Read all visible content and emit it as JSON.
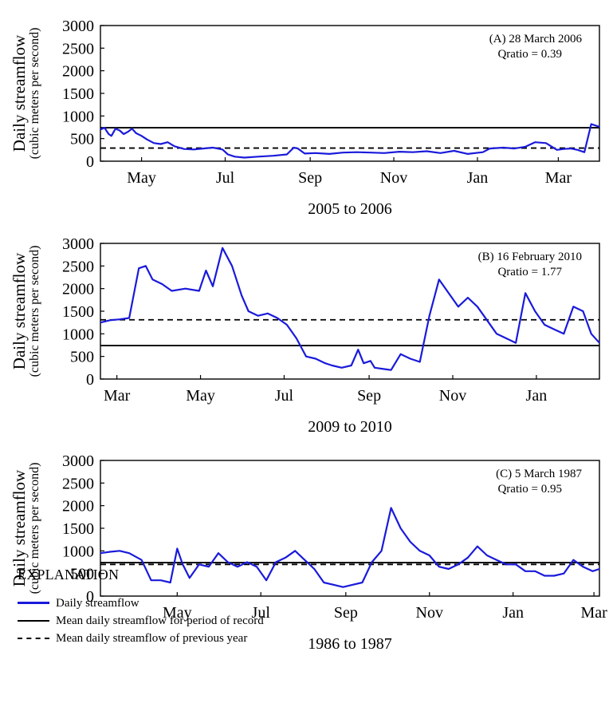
{
  "chart_data": [
    {
      "type": "line",
      "id": "A",
      "ylabel": "Daily streamflow",
      "ylabel_sub": "(cubic meters per second)",
      "xlabel": "2005 to 2006",
      "ylim": [
        0,
        3000
      ],
      "yticks": [
        0,
        500,
        1000,
        1500,
        2000,
        2500,
        3000
      ],
      "xlim": [
        "2005-04-01",
        "2006-03-31"
      ],
      "xticks": [
        {
          "label": "May",
          "date": "2005-05-01"
        },
        {
          "label": "Jul",
          "date": "2005-07-01"
        },
        {
          "label": "Sep",
          "date": "2005-09-01"
        },
        {
          "label": "Nov",
          "date": "2005-11-01"
        },
        {
          "label": "Jan",
          "date": "2006-01-01"
        },
        {
          "label": "Mar",
          "date": "2006-03-01"
        }
      ],
      "annotation": [
        "(A) 28 March 2006",
        "Qratio =  0.39"
      ],
      "mean_period_of_record": 740,
      "mean_previous_year": 290,
      "series": [
        {
          "name": "Daily streamflow",
          "x": [
            "2005-04-01",
            "2005-04-04",
            "2005-04-07",
            "2005-04-09",
            "2005-04-12",
            "2005-04-15",
            "2005-04-18",
            "2005-04-21",
            "2005-04-24",
            "2005-04-27",
            "2005-05-01",
            "2005-05-05",
            "2005-05-10",
            "2005-05-15",
            "2005-05-20",
            "2005-05-25",
            "2005-06-01",
            "2005-06-08",
            "2005-06-15",
            "2005-06-22",
            "2005-06-29",
            "2005-07-03",
            "2005-07-08",
            "2005-07-15",
            "2005-07-25",
            "2005-08-05",
            "2005-08-15",
            "2005-08-20",
            "2005-08-23",
            "2005-08-28",
            "2005-09-05",
            "2005-09-15",
            "2005-09-25",
            "2005-10-05",
            "2005-10-15",
            "2005-10-25",
            "2005-11-05",
            "2005-11-15",
            "2005-11-25",
            "2005-12-05",
            "2005-12-15",
            "2005-12-25",
            "2006-01-05",
            "2006-01-10",
            "2006-01-20",
            "2006-01-28",
            "2006-02-05",
            "2006-02-12",
            "2006-02-20",
            "2006-02-28",
            "2006-03-05",
            "2006-03-10",
            "2006-03-15",
            "2006-03-20",
            "2006-03-25",
            "2006-03-31"
          ],
          "values": [
            700,
            740,
            600,
            560,
            720,
            680,
            600,
            650,
            720,
            620,
            560,
            480,
            400,
            380,
            420,
            330,
            270,
            260,
            280,
            300,
            260,
            150,
            100,
            80,
            100,
            120,
            150,
            300,
            280,
            170,
            180,
            160,
            190,
            200,
            190,
            180,
            210,
            200,
            220,
            180,
            230,
            160,
            200,
            280,
            300,
            280,
            320,
            420,
            400,
            250,
            270,
            280,
            250,
            200,
            820,
            760
          ]
        }
      ]
    },
    {
      "type": "line",
      "id": "B",
      "ylabel": "Daily streamflow",
      "ylabel_sub": "(cubic meters per second)",
      "xlabel": "2009 to 2010",
      "ylim": [
        0,
        3000
      ],
      "yticks": [
        0,
        500,
        1000,
        1500,
        2000,
        2500,
        3000
      ],
      "xlim": [
        "2009-02-17",
        "2010-02-16"
      ],
      "xticks": [
        {
          "label": "Mar",
          "date": "2009-03-01"
        },
        {
          "label": "May",
          "date": "2009-05-01"
        },
        {
          "label": "Jul",
          "date": "2009-07-01"
        },
        {
          "label": "Sep",
          "date": "2009-09-01"
        },
        {
          "label": "Nov",
          "date": "2009-11-01"
        },
        {
          "label": "Jan",
          "date": "2010-01-01"
        }
      ],
      "annotation": [
        "(B) 16 February 2010",
        "Qratio =  1.77"
      ],
      "mean_period_of_record": 740,
      "mean_previous_year": 1310,
      "series": [
        {
          "name": "Daily streamflow",
          "x": [
            "2009-02-17",
            "2009-02-24",
            "2009-03-03",
            "2009-03-10",
            "2009-03-17",
            "2009-03-22",
            "2009-03-27",
            "2009-04-03",
            "2009-04-10",
            "2009-04-20",
            "2009-04-30",
            "2009-05-05",
            "2009-05-10",
            "2009-05-17",
            "2009-05-24",
            "2009-05-31",
            "2009-06-05",
            "2009-06-12",
            "2009-06-19",
            "2009-06-26",
            "2009-07-03",
            "2009-07-10",
            "2009-07-17",
            "2009-07-24",
            "2009-07-31",
            "2009-08-05",
            "2009-08-12",
            "2009-08-19",
            "2009-08-24",
            "2009-08-28",
            "2009-09-02",
            "2009-09-05",
            "2009-09-12",
            "2009-09-17",
            "2009-09-24",
            "2009-10-01",
            "2009-10-08",
            "2009-10-15",
            "2009-10-22",
            "2009-10-29",
            "2009-11-05",
            "2009-11-12",
            "2009-11-19",
            "2009-11-26",
            "2009-12-03",
            "2009-12-10",
            "2009-12-17",
            "2009-12-24",
            "2009-12-31",
            "2010-01-07",
            "2010-01-14",
            "2010-01-21",
            "2010-01-28",
            "2010-02-04",
            "2010-02-10",
            "2010-02-16"
          ],
          "values": [
            1250,
            1300,
            1320,
            1350,
            2450,
            2500,
            2200,
            2100,
            1950,
            2000,
            1950,
            2400,
            2050,
            2900,
            2500,
            1850,
            1500,
            1400,
            1450,
            1350,
            1200,
            900,
            500,
            450,
            350,
            300,
            250,
            300,
            650,
            350,
            400,
            250,
            220,
            200,
            550,
            450,
            380,
            1400,
            2200,
            1900,
            1600,
            1800,
            1600,
            1300,
            1000,
            900,
            800,
            1900,
            1500,
            1200,
            1100,
            1000,
            1600,
            1500,
            1000,
            800
          ]
        }
      ]
    },
    {
      "type": "line",
      "id": "C",
      "ylabel": "Daily streamflow",
      "ylabel_sub": "(cubic meters per second)",
      "xlabel": "1986 to 1987",
      "ylim": [
        0,
        3000
      ],
      "yticks": [
        0,
        500,
        1000,
        1500,
        2000,
        2500,
        3000
      ],
      "xlim": [
        "1986-03-06",
        "1987-03-05"
      ],
      "xticks": [
        {
          "label": "May",
          "date": "1986-05-01"
        },
        {
          "label": "Jul",
          "date": "1986-07-01"
        },
        {
          "label": "Sep",
          "date": "1986-09-01"
        },
        {
          "label": "Nov",
          "date": "1986-11-01"
        },
        {
          "label": "Jan",
          "date": "1987-01-01"
        },
        {
          "label": "Mar",
          "date": "1987-03-01"
        }
      ],
      "annotation": [
        "(C) 5 March 1987",
        "Qratio =  0.95"
      ],
      "mean_period_of_record": 740,
      "mean_previous_year": 700,
      "series": [
        {
          "name": "Daily streamflow",
          "x": [
            "1986-03-06",
            "1986-03-13",
            "1986-03-20",
            "1986-03-27",
            "1986-04-05",
            "1986-04-12",
            "1986-04-19",
            "1986-04-26",
            "1986-05-01",
            "1986-05-05",
            "1986-05-10",
            "1986-05-17",
            "1986-05-24",
            "1986-05-31",
            "1986-06-07",
            "1986-06-14",
            "1986-06-21",
            "1986-06-28",
            "1986-07-05",
            "1986-07-12",
            "1986-07-19",
            "1986-07-26",
            "1986-08-02",
            "1986-08-09",
            "1986-08-16",
            "1986-08-23",
            "1986-08-30",
            "1986-09-06",
            "1986-09-13",
            "1986-09-20",
            "1986-09-27",
            "1986-10-04",
            "1986-10-11",
            "1986-10-18",
            "1986-10-25",
            "1986-11-01",
            "1986-11-08",
            "1986-11-15",
            "1986-11-22",
            "1986-11-29",
            "1986-12-06",
            "1986-12-13",
            "1986-12-20",
            "1986-12-27",
            "1987-01-03",
            "1987-01-10",
            "1987-01-17",
            "1987-01-24",
            "1987-01-31",
            "1987-02-07",
            "1987-02-14",
            "1987-02-21",
            "1987-02-28",
            "1987-03-05"
          ],
          "values": [
            950,
            980,
            1000,
            950,
            800,
            350,
            350,
            300,
            1050,
            700,
            400,
            700,
            650,
            950,
            750,
            650,
            750,
            650,
            350,
            750,
            850,
            1000,
            800,
            600,
            300,
            250,
            200,
            250,
            300,
            750,
            1000,
            1950,
            1500,
            1200,
            1000,
            900,
            650,
            600,
            700,
            850,
            1100,
            900,
            800,
            700,
            700,
            550,
            550,
            450,
            450,
            500,
            800,
            650,
            550,
            600
          ]
        }
      ]
    }
  ],
  "explanation": {
    "title": "EXPLANATION",
    "items": [
      {
        "label": "Daily streamflow",
        "style": "daily"
      },
      {
        "label": "Mean daily streamflow for period of record",
        "style": "mean"
      },
      {
        "label": "Mean daily streamflow of previous year",
        "style": "prev"
      }
    ]
  },
  "colors": {
    "streamflow": "#1a1adb",
    "axis": "#000000"
  }
}
